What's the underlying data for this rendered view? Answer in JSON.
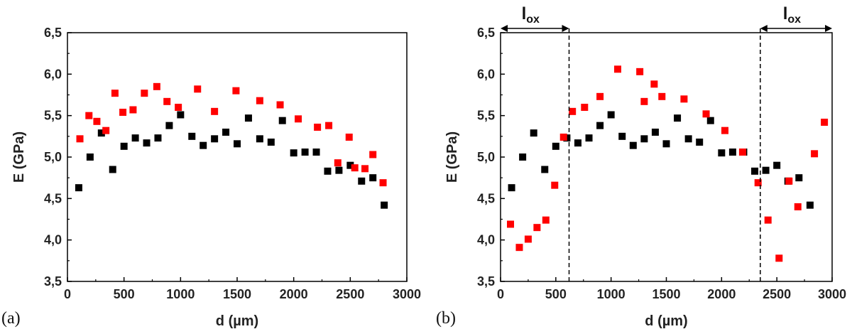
{
  "chart_data": [
    {
      "type": "scatter",
      "panel_label": "(a)",
      "xlabel": "d (µm)",
      "ylabel": "E (GPa)",
      "xlim": [
        0,
        3000
      ],
      "ylim": [
        3.5,
        6.5
      ],
      "xticks": [
        0,
        500,
        1000,
        1500,
        2000,
        2500,
        3000
      ],
      "yticks": [
        "3,5",
        "4,0",
        "4,5",
        "5,0",
        "5,5",
        "6,0",
        "6,5"
      ],
      "ytick_values": [
        3.5,
        4.0,
        4.5,
        5.0,
        5.5,
        6.0,
        6.5
      ],
      "grid": false,
      "series": [
        {
          "color": "#000000",
          "points": [
            [
              100,
              4.63
            ],
            [
              200,
              5.0
            ],
            [
              300,
              5.29
            ],
            [
              400,
              4.85
            ],
            [
              500,
              5.13
            ],
            [
              600,
              5.23
            ],
            [
              700,
              5.17
            ],
            [
              800,
              5.23
            ],
            [
              900,
              5.38
            ],
            [
              1000,
              5.51
            ],
            [
              1100,
              5.25
            ],
            [
              1200,
              5.14
            ],
            [
              1300,
              5.22
            ],
            [
              1400,
              5.3
            ],
            [
              1500,
              5.16
            ],
            [
              1600,
              5.47
            ],
            [
              1700,
              5.22
            ],
            [
              1800,
              5.18
            ],
            [
              1900,
              5.44
            ],
            [
              2000,
              5.05
            ],
            [
              2100,
              5.06
            ],
            [
              2200,
              5.06
            ],
            [
              2300,
              4.83
            ],
            [
              2400,
              4.84
            ],
            [
              2500,
              4.9
            ],
            [
              2600,
              4.71
            ],
            [
              2700,
              4.75
            ],
            [
              2800,
              4.42
            ]
          ]
        },
        {
          "color": "#ff0000",
          "points": [
            [
              110,
              5.22
            ],
            [
              190,
              5.5
            ],
            [
              260,
              5.43
            ],
            [
              340,
              5.32
            ],
            [
              420,
              5.77
            ],
            [
              490,
              5.54
            ],
            [
              580,
              5.57
            ],
            [
              680,
              5.77
            ],
            [
              790,
              5.85
            ],
            [
              880,
              5.67
            ],
            [
              980,
              5.6
            ],
            [
              1150,
              5.82
            ],
            [
              1300,
              5.55
            ],
            [
              1490,
              5.8
            ],
            [
              1700,
              5.68
            ],
            [
              1880,
              5.63
            ],
            [
              2040,
              5.46
            ],
            [
              2210,
              5.36
            ],
            [
              2310,
              5.38
            ],
            [
              2390,
              4.93
            ],
            [
              2490,
              5.24
            ],
            [
              2540,
              4.87
            ],
            [
              2630,
              4.86
            ],
            [
              2700,
              5.03
            ],
            [
              2790,
              4.69
            ]
          ]
        }
      ]
    },
    {
      "type": "scatter",
      "panel_label": "(b)",
      "xlabel": "d (µm)",
      "ylabel": "E (GPa)",
      "xlim": [
        0,
        3000
      ],
      "ylim": [
        3.5,
        6.5
      ],
      "xticks": [
        0,
        500,
        1000,
        1500,
        2000,
        2500,
        3000
      ],
      "yticks": [
        "3,5",
        "4,0",
        "4,5",
        "5,0",
        "5,5",
        "6,0",
        "6,5"
      ],
      "ytick_values": [
        3.5,
        4.0,
        4.5,
        5.0,
        5.5,
        6.0,
        6.5
      ],
      "grid": false,
      "annotations": [
        {
          "text": "l",
          "sub": "ox",
          "x_from": 0,
          "x_to": 620,
          "dashed_line_x": 620
        },
        {
          "text": "l",
          "sub": "ox",
          "x_from": 2350,
          "x_to": 3000,
          "dashed_line_x": 2350
        }
      ],
      "series": [
        {
          "color": "#000000",
          "points": [
            [
              100,
              4.63
            ],
            [
              200,
              5.0
            ],
            [
              300,
              5.29
            ],
            [
              400,
              4.85
            ],
            [
              500,
              5.13
            ],
            [
              600,
              5.23
            ],
            [
              700,
              5.17
            ],
            [
              800,
              5.23
            ],
            [
              900,
              5.38
            ],
            [
              1000,
              5.51
            ],
            [
              1100,
              5.25
            ],
            [
              1200,
              5.14
            ],
            [
              1300,
              5.22
            ],
            [
              1400,
              5.3
            ],
            [
              1500,
              5.16
            ],
            [
              1600,
              5.47
            ],
            [
              1700,
              5.22
            ],
            [
              1800,
              5.18
            ],
            [
              1900,
              5.44
            ],
            [
              2000,
              5.05
            ],
            [
              2100,
              5.06
            ],
            [
              2200,
              5.06
            ],
            [
              2300,
              4.83
            ],
            [
              2400,
              4.84
            ],
            [
              2500,
              4.9
            ],
            [
              2600,
              4.71
            ],
            [
              2700,
              4.75
            ],
            [
              2800,
              4.42
            ]
          ]
        },
        {
          "color": "#ff0000",
          "points": [
            [
              90,
              4.19
            ],
            [
              170,
              3.91
            ],
            [
              250,
              4.01
            ],
            [
              330,
              4.15
            ],
            [
              410,
              4.24
            ],
            [
              490,
              4.66
            ],
            [
              570,
              5.24
            ],
            [
              650,
              5.55
            ],
            [
              760,
              5.6
            ],
            [
              900,
              5.73
            ],
            [
              1060,
              6.06
            ],
            [
              1260,
              6.03
            ],
            [
              1300,
              5.67
            ],
            [
              1390,
              5.88
            ],
            [
              1460,
              5.73
            ],
            [
              1660,
              5.7
            ],
            [
              1860,
              5.52
            ],
            [
              2030,
              5.32
            ],
            [
              2190,
              5.06
            ],
            [
              2330,
              4.69
            ],
            [
              2420,
              4.24
            ],
            [
              2520,
              3.78
            ],
            [
              2610,
              4.71
            ],
            [
              2690,
              4.4
            ],
            [
              2840,
              5.04
            ],
            [
              2930,
              5.42
            ]
          ]
        }
      ]
    }
  ]
}
